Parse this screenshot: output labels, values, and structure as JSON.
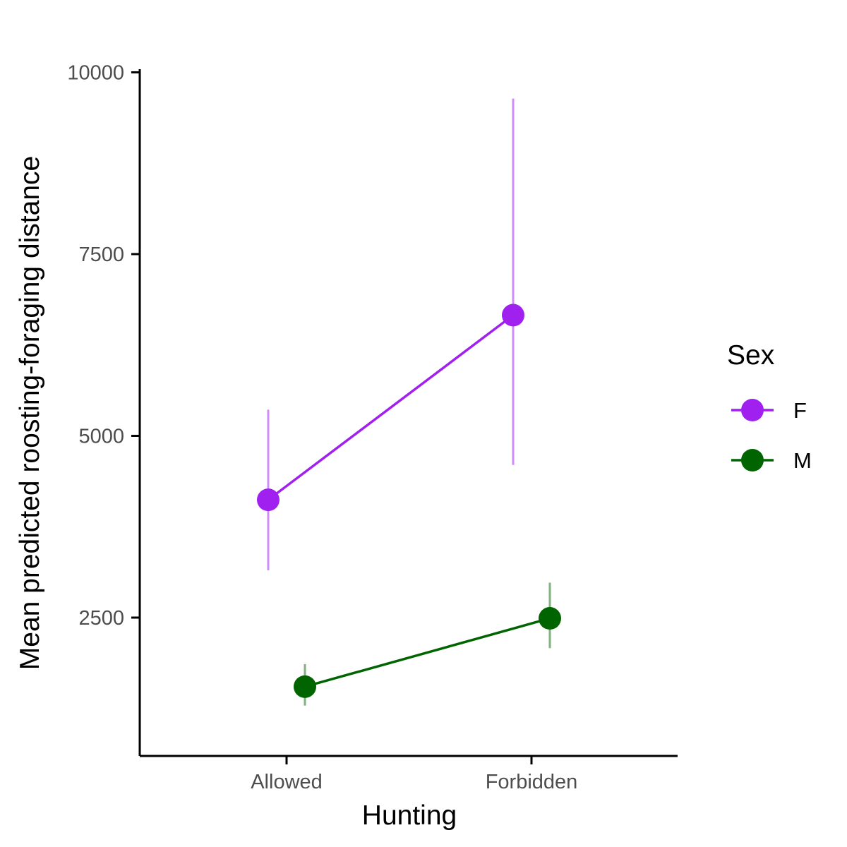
{
  "chart_data": {
    "type": "line",
    "categories": [
      "Allowed",
      "Forbidden"
    ],
    "xlabel": "Hunting",
    "ylabel": "Mean predicted roosting-foraging distance",
    "ylim": [
      1000,
      10000
    ],
    "yticks": [
      2500,
      5000,
      7500,
      10000
    ],
    "grid": false,
    "legend": {
      "title": "Sex",
      "placement": "right"
    },
    "series": [
      {
        "name": "F",
        "color": "#a020f0",
        "errorbar_color": "#d08cf8",
        "values": [
          4120,
          6660
        ],
        "lower": [
          3150,
          4600
        ],
        "upper": [
          5360,
          9640
        ]
      },
      {
        "name": "M",
        "color": "#006400",
        "errorbar_color": "#80b280",
        "values": [
          1550,
          2490
        ],
        "lower": [
          1290,
          2080
        ],
        "upper": [
          1860,
          2980
        ]
      }
    ]
  }
}
